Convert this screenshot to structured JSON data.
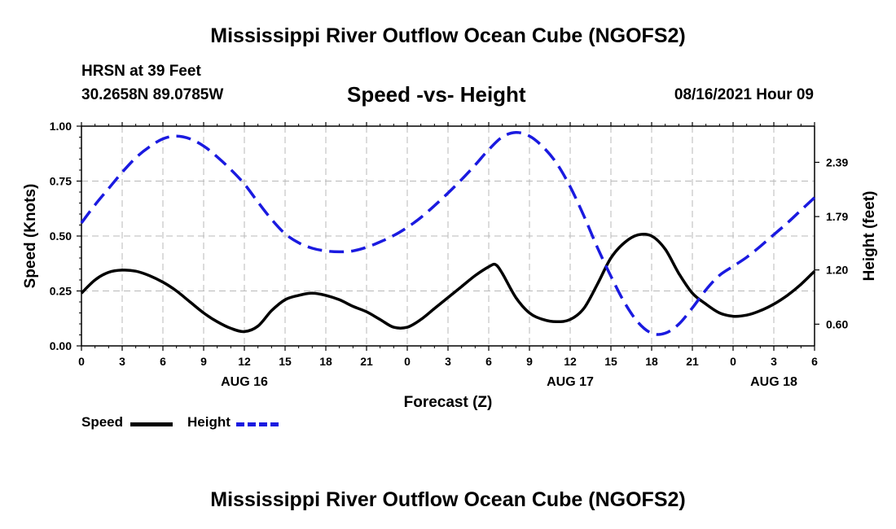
{
  "header": {
    "title": "Mississippi River Outflow Ocean Cube (NGOFS2)",
    "station": "HRSN at 39 Feet",
    "coordinates": "30.2658N  89.0785W",
    "subtitle": "Speed -vs- Height",
    "datestamp": "08/16/2021 Hour 09"
  },
  "footer": {
    "title": "Mississippi River Outflow Ocean Cube (NGOFS2)"
  },
  "legend": {
    "speed_label": "Speed",
    "height_label": "Height"
  },
  "chart_data": {
    "type": "line",
    "title": "Speed -vs- Height",
    "xlabel": "Forecast (Z)",
    "ylabel": "Speed (Knots)",
    "y2label": "Height (feet)",
    "grid": true,
    "legend_position": "bottom-left",
    "xlim": [
      0,
      54
    ],
    "ylim": [
      0,
      1.0
    ],
    "y2lim": [
      0.36,
      2.79
    ],
    "x_ticks": [
      0,
      3,
      6,
      9,
      12,
      15,
      18,
      21,
      24,
      27,
      30,
      33,
      36,
      39,
      42,
      45,
      48,
      51,
      54
    ],
    "x_tick_labels": [
      "0",
      "3",
      "6",
      "9",
      "12",
      "15",
      "18",
      "21",
      "0",
      "3",
      "6",
      "9",
      "12",
      "15",
      "18",
      "21",
      "0",
      "3",
      "6"
    ],
    "y_ticks": [
      0.0,
      0.25,
      0.5,
      0.75,
      1.0
    ],
    "y_tick_labels": [
      "0.00",
      "0.25",
      "0.50",
      "0.75",
      "1.00"
    ],
    "y2_ticks": [
      0.6,
      1.2,
      1.79,
      2.39
    ],
    "y2_tick_labels": [
      "0.60",
      "1.20",
      "1.79",
      "2.39"
    ],
    "day_labels": [
      {
        "x": 12,
        "label": "AUG 16"
      },
      {
        "x": 36,
        "label": "AUG 17"
      },
      {
        "x": 51,
        "label": "AUG 18"
      }
    ],
    "series": [
      {
        "name": "Speed",
        "axis": "left",
        "color": "#000000",
        "style": "solid",
        "x": [
          0,
          1,
          2,
          3,
          4,
          5,
          6,
          7,
          8,
          9,
          10,
          11,
          12,
          13,
          14,
          15,
          16,
          17,
          18,
          19,
          20,
          21,
          22,
          23,
          24,
          25,
          26,
          27,
          28,
          29,
          30,
          30.5,
          31,
          32,
          33,
          34,
          35,
          36,
          37,
          38,
          39,
          40,
          41,
          42,
          43,
          44,
          45,
          46,
          47,
          48,
          49,
          50,
          51,
          52,
          53,
          54
        ],
        "values": [
          0.24,
          0.3,
          0.335,
          0.345,
          0.34,
          0.32,
          0.29,
          0.25,
          0.2,
          0.15,
          0.11,
          0.08,
          0.065,
          0.09,
          0.16,
          0.21,
          0.23,
          0.24,
          0.23,
          0.21,
          0.18,
          0.155,
          0.12,
          0.085,
          0.085,
          0.12,
          0.17,
          0.22,
          0.27,
          0.32,
          0.36,
          0.37,
          0.33,
          0.22,
          0.15,
          0.12,
          0.11,
          0.12,
          0.17,
          0.28,
          0.4,
          0.47,
          0.505,
          0.5,
          0.44,
          0.33,
          0.24,
          0.19,
          0.15,
          0.135,
          0.14,
          0.16,
          0.19,
          0.23,
          0.28,
          0.34
        ]
      },
      {
        "name": "Height",
        "axis": "right",
        "color": "#1a1ae0",
        "style": "dashed",
        "x": [
          0,
          1,
          2,
          3,
          4,
          5,
          6,
          7,
          8,
          9,
          10,
          11,
          12,
          13,
          14,
          15,
          16,
          17,
          18,
          19,
          20,
          21,
          22,
          23,
          24,
          25,
          26,
          27,
          28,
          29,
          30,
          31,
          32,
          33,
          34,
          35,
          36,
          37,
          38,
          39,
          40,
          41,
          42,
          43,
          44,
          45,
          46,
          47,
          48,
          49,
          50,
          51,
          52,
          53,
          54
        ],
        "values": [
          1.72,
          1.92,
          2.1,
          2.28,
          2.44,
          2.56,
          2.65,
          2.68,
          2.65,
          2.57,
          2.45,
          2.31,
          2.15,
          1.95,
          1.76,
          1.6,
          1.5,
          1.44,
          1.41,
          1.4,
          1.41,
          1.45,
          1.51,
          1.58,
          1.67,
          1.78,
          1.91,
          2.05,
          2.2,
          2.36,
          2.53,
          2.67,
          2.72,
          2.68,
          2.56,
          2.38,
          2.12,
          1.8,
          1.45,
          1.13,
          0.84,
          0.62,
          0.5,
          0.5,
          0.6,
          0.78,
          0.98,
          1.14,
          1.24,
          1.34,
          1.46,
          1.59,
          1.72,
          1.86,
          2.0
        ]
      }
    ]
  }
}
